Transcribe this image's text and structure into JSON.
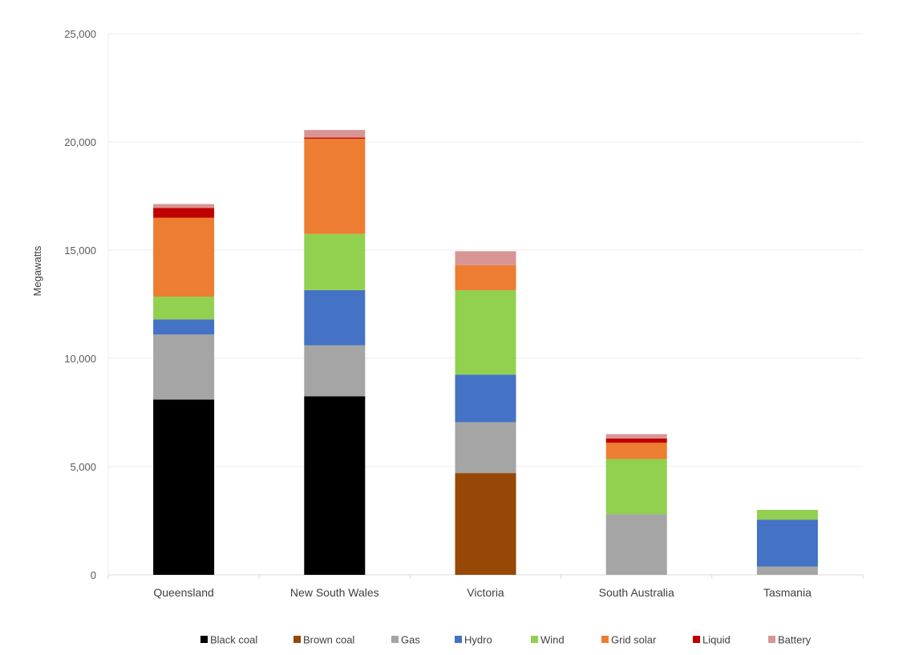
{
  "chart_data": {
    "type": "bar",
    "stacked": true,
    "title": "",
    "xlabel": "",
    "ylabel": "Megawatts",
    "ylim": [
      0,
      25000
    ],
    "yticks": [
      0,
      5000,
      10000,
      15000,
      20000,
      25000
    ],
    "ytick_labels": [
      "0",
      "5,000",
      "10,000",
      "15,000",
      "20,000",
      "25,000"
    ],
    "grid": true,
    "legend_position": "bottom",
    "categories": [
      "Queensland",
      "New South Wales",
      "Victoria",
      "South Australia",
      "Tasmania"
    ],
    "series": [
      {
        "name": "Black coal",
        "color": "#000000",
        "values": [
          8100,
          8250,
          0,
          0,
          0
        ]
      },
      {
        "name": "Brown coal",
        "color": "#974706",
        "values": [
          0,
          0,
          4700,
          0,
          0
        ]
      },
      {
        "name": "Gas",
        "color": "#A5A5A5",
        "values": [
          3000,
          2350,
          2350,
          2800,
          380
        ]
      },
      {
        "name": "Hydro",
        "color": "#4472C4",
        "values": [
          700,
          2550,
          2200,
          0,
          2170
        ]
      },
      {
        "name": "Wind",
        "color": "#92D050",
        "values": [
          1050,
          2600,
          3900,
          2550,
          450
        ]
      },
      {
        "name": "Grid solar",
        "color": "#ED7D31",
        "values": [
          3650,
          4400,
          1150,
          750,
          0
        ]
      },
      {
        "name": "Liquid",
        "color": "#C00000",
        "values": [
          450,
          50,
          0,
          200,
          0
        ]
      },
      {
        "name": "Battery",
        "color": "#D99594",
        "values": [
          180,
          350,
          650,
          200,
          0
        ]
      }
    ]
  }
}
